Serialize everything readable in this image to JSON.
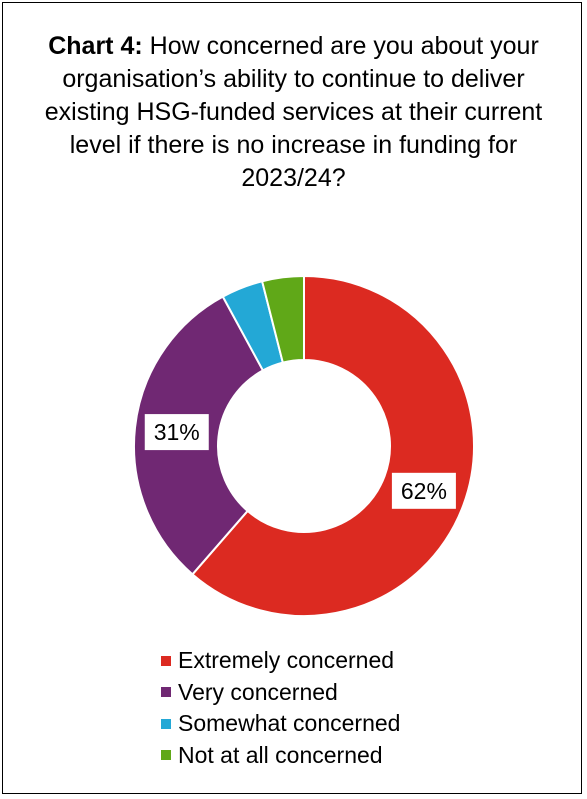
{
  "chart_data": {
    "type": "pie",
    "title_lead": "Chart 4:",
    "title_text": "How concerned are you about your organisation’s ability to continue to deliver existing HSG-funded services at their current level if there is no increase in funding for 2023/24?",
    "categories": [
      "Extremely concerned",
      "Very concerned",
      "Somewhat concerned",
      "Not at all concerned"
    ],
    "values": [
      62,
      31,
      4,
      4
    ],
    "data_labels": [
      "62%",
      "31%",
      "",
      ""
    ],
    "colors": [
      "#dc2a21",
      "#702873",
      "#23a8d6",
      "#60a818"
    ],
    "donut": true,
    "legend_position": "bottom"
  }
}
